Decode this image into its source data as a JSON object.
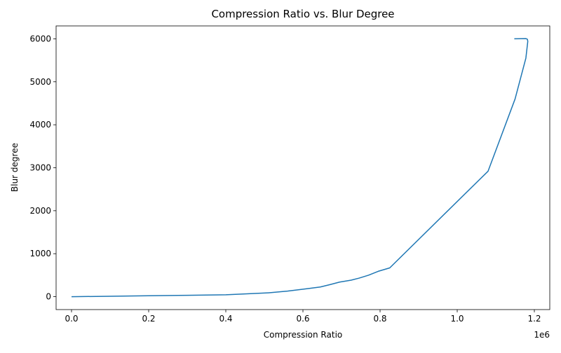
{
  "chart_data": {
    "type": "line",
    "title": "Compression Ratio vs. Blur Degree",
    "xlabel": "Compression Ratio",
    "ylabel": "Blur degree",
    "x_offset_label": "1e6",
    "xlim": [
      -40000,
      1240000
    ],
    "ylim": [
      -300,
      6300
    ],
    "xticks": [
      0,
      200000,
      400000,
      600000,
      800000,
      1000000,
      1200000
    ],
    "xtick_labels": [
      "0.0",
      "0.2",
      "0.4",
      "0.6",
      "0.8",
      "1.0",
      "1.2"
    ],
    "yticks": [
      0,
      1000,
      2000,
      3000,
      4000,
      5000,
      6000
    ],
    "ytick_labels": [
      "0",
      "1000",
      "2000",
      "3000",
      "4000",
      "5000",
      "6000"
    ],
    "grid": false,
    "series": [
      {
        "color": "#1f77b4",
        "x": [
          0,
          100000,
          200000,
          300000,
          400000,
          450000,
          510000,
          560000,
          610000,
          645000,
          670000,
          695000,
          725000,
          745000,
          770000,
          795000,
          825000,
          1080000,
          1150000,
          1178000,
          1183000,
          1182000,
          1178000,
          1165000,
          1148000
        ],
        "y": [
          0,
          10,
          22,
          32,
          45,
          65,
          90,
          130,
          185,
          225,
          280,
          340,
          385,
          430,
          500,
          590,
          670,
          2920,
          4600,
          5550,
          5940,
          5990,
          6005,
          6002,
          6000
        ]
      }
    ]
  }
}
